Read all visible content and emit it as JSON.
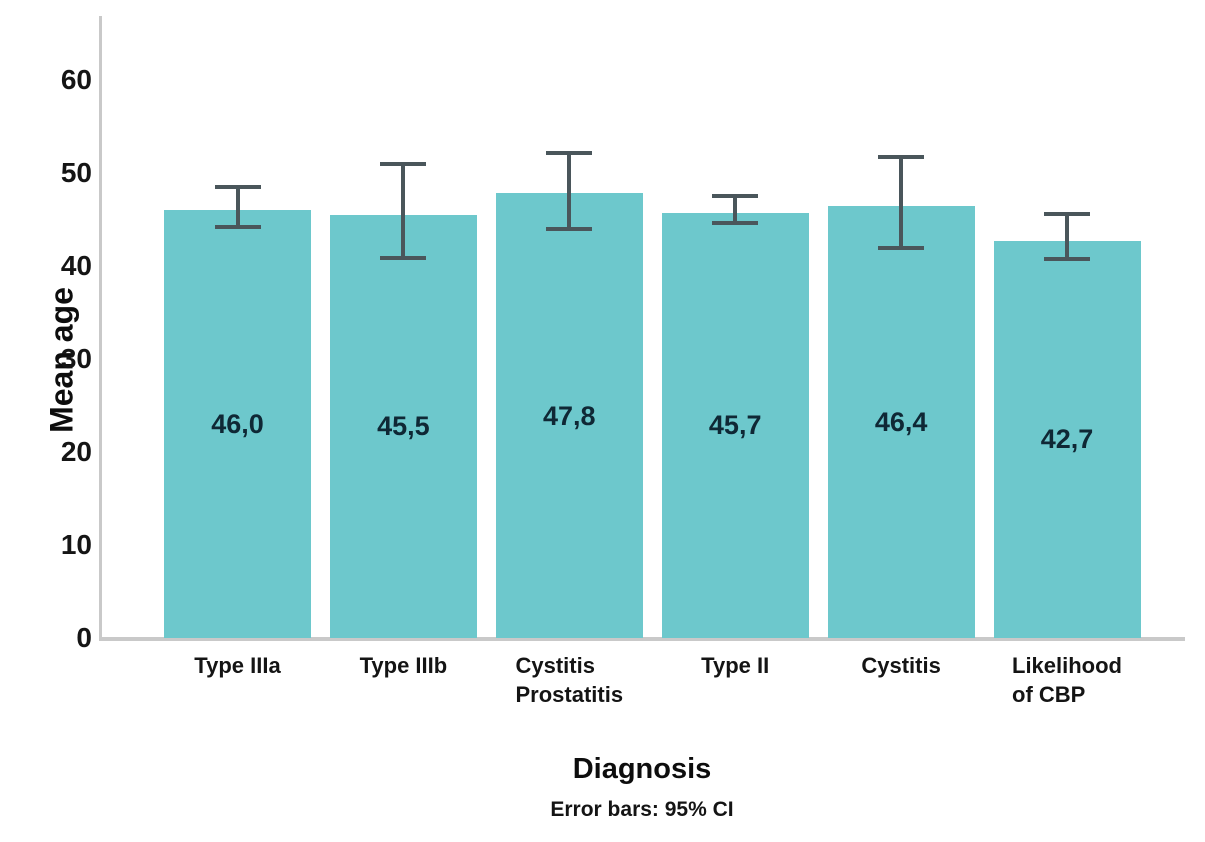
{
  "chart_data": {
    "type": "bar",
    "title": "",
    "xlabel": "Diagnosis",
    "ylabel": "Mean age",
    "footnote": "Error bars: 95% CI",
    "categories": [
      "Type IIIa",
      "Type IIIb",
      "Cystitis\nProstatitis",
      "Type II",
      "Cystitis",
      "Likelihood\nof CBP"
    ],
    "values": [
      46.0,
      45.5,
      47.8,
      45.7,
      46.4,
      42.7
    ],
    "value_labels": [
      "46,0",
      "45,5",
      "47,8",
      "45,7",
      "46,4",
      "42,7"
    ],
    "error_bars": {
      "label": "95% CI",
      "low": [
        44.2,
        40.9,
        44.0,
        44.6,
        41.9,
        40.7
      ],
      "high": [
        48.5,
        51.0,
        52.2,
        47.5,
        51.7,
        45.6
      ]
    },
    "yticks": [
      0,
      10,
      20,
      30,
      40,
      50,
      60
    ],
    "ylim": [
      0,
      67
    ],
    "grid": false,
    "legend": "none",
    "colors": {
      "bar": "#6dc8cc",
      "error_bar": "#4a565b",
      "axis": "#c9c9c9",
      "value_text": "#0f2835",
      "text": "#141414"
    }
  }
}
